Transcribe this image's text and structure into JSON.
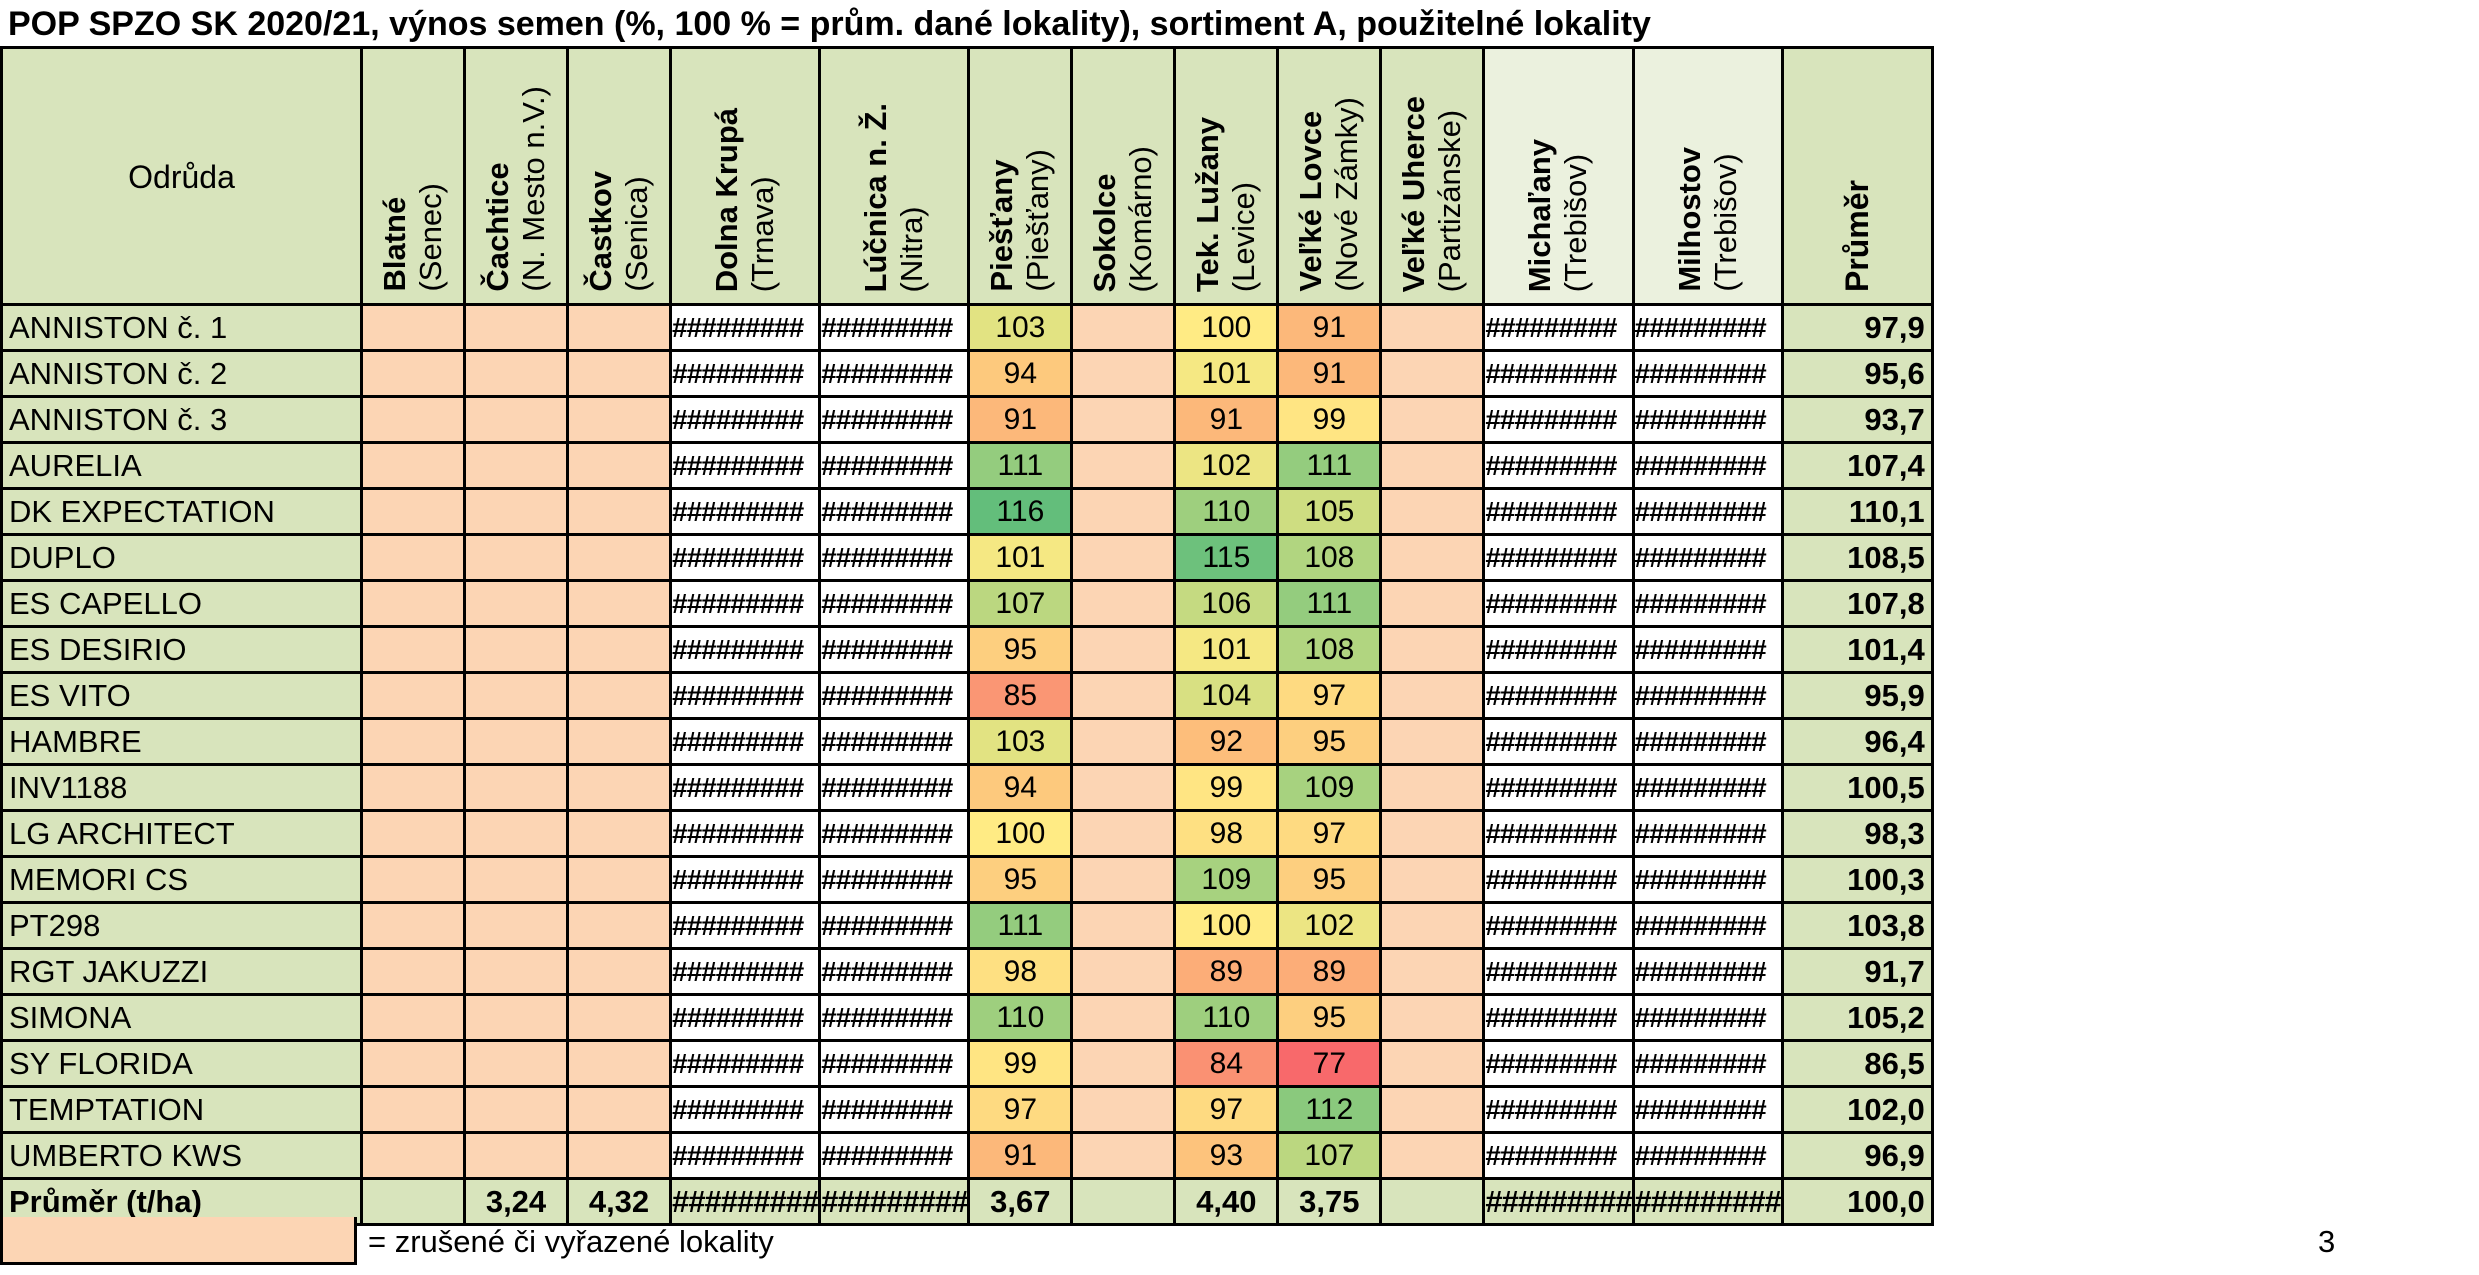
{
  "title": "POP SPZO SK 2020/21, výnos semen (%, 100 % = prům. dané lokality), sortiment A, použitelné lokality",
  "header": {
    "variety_label": "Odrůda",
    "average_label": "Průměr",
    "locations": [
      {
        "name": "Blatné",
        "region": "(Senec)"
      },
      {
        "name": "Čachtice",
        "region": "(N. Mesto n.V.)"
      },
      {
        "name": "Častkov",
        "region": "(Senica)"
      },
      {
        "name": "Dolna Krupá",
        "region": "(Trnava)"
      },
      {
        "name": "Lúčnica n. Ž.",
        "region": "(Nitra)"
      },
      {
        "name": "Piešťany",
        "region": "(Piešťany)"
      },
      {
        "name": "Sokolce",
        "region": "(Komárno)"
      },
      {
        "name": "Tek. Lužany",
        "region": "(Levice)"
      },
      {
        "name": "Veľké Lovce",
        "region": "(Nové Zámky)"
      },
      {
        "name": "Veľké Uherce",
        "region": "(Partizánske)"
      },
      {
        "name": "Michaľany",
        "region": "(Trebišov)"
      },
      {
        "name": "Milhostov",
        "region": "(Trebišov)"
      }
    ]
  },
  "hash_text": "#########",
  "rows": [
    {
      "variety": "ANNISTON   č. 1",
      "piestany": "103",
      "tek": "100",
      "lovce": "91",
      "avg": "97,9"
    },
    {
      "variety": "ANNISTON   č. 2",
      "piestany": "94",
      "tek": "101",
      "lovce": "91",
      "avg": "95,6"
    },
    {
      "variety": "ANNISTON   č. 3",
      "piestany": "91",
      "tek": "91",
      "lovce": "99",
      "avg": "93,7"
    },
    {
      "variety": "AURELIA",
      "piestany": "111",
      "tek": "102",
      "lovce": "111",
      "avg": "107,4"
    },
    {
      "variety": "DK EXPECTATION",
      "piestany": "116",
      "tek": "110",
      "lovce": "105",
      "avg": "110,1"
    },
    {
      "variety": "DUPLO",
      "piestany": "101",
      "tek": "115",
      "lovce": "108",
      "avg": "108,5"
    },
    {
      "variety": "ES CAPELLO",
      "piestany": "107",
      "tek": "106",
      "lovce": "111",
      "avg": "107,8"
    },
    {
      "variety": "ES DESIRIO",
      "piestany": "95",
      "tek": "101",
      "lovce": "108",
      "avg": "101,4"
    },
    {
      "variety": "ES VITO",
      "piestany": "85",
      "tek": "104",
      "lovce": "97",
      "avg": "95,9"
    },
    {
      "variety": "HAMBRE",
      "piestany": "103",
      "tek": "92",
      "lovce": "95",
      "avg": "96,4"
    },
    {
      "variety": "INV1188",
      "piestany": "94",
      "tek": "99",
      "lovce": "109",
      "avg": "100,5"
    },
    {
      "variety": "LG ARCHITECT",
      "piestany": "100",
      "tek": "98",
      "lovce": "97",
      "avg": "98,3"
    },
    {
      "variety": "MEMORI CS",
      "piestany": "95",
      "tek": "109",
      "lovce": "95",
      "avg": "100,3"
    },
    {
      "variety": "PT298",
      "piestany": "111",
      "tek": "100",
      "lovce": "102",
      "avg": "103,8"
    },
    {
      "variety": "RGT JAKUZZI",
      "piestany": "98",
      "tek": "89",
      "lovce": "89",
      "avg": "91,7"
    },
    {
      "variety": "SIMONA",
      "piestany": "110",
      "tek": "110",
      "lovce": "95",
      "avg": "105,2"
    },
    {
      "variety": "SY FLORIDA",
      "piestany": "99",
      "tek": "84",
      "lovce": "77",
      "avg": "86,5"
    },
    {
      "variety": "TEMPTATION",
      "piestany": "97",
      "tek": "97",
      "lovce": "112",
      "avg": "102,0"
    },
    {
      "variety": "UMBERTO KWS",
      "piestany": "91",
      "tek": "93",
      "lovce": "107",
      "avg": "96,9"
    }
  ],
  "total_row": {
    "label": "Průměr (t/ha)",
    "cachtice": "3,24",
    "castkov": "4,32",
    "piestany": "3,67",
    "tek": "4,40",
    "lovce": "3,75",
    "avg": "100,0"
  },
  "legend_text": "= zrušené či vyřazené lokality",
  "page_number": "3",
  "colors": {
    "cancelled_location": "#fcd5b4",
    "header_green": "#d8e4bc",
    "scale_low": "#f8696b",
    "scale_mid": "#ffeb84",
    "scale_high": "#63be7b"
  }
}
